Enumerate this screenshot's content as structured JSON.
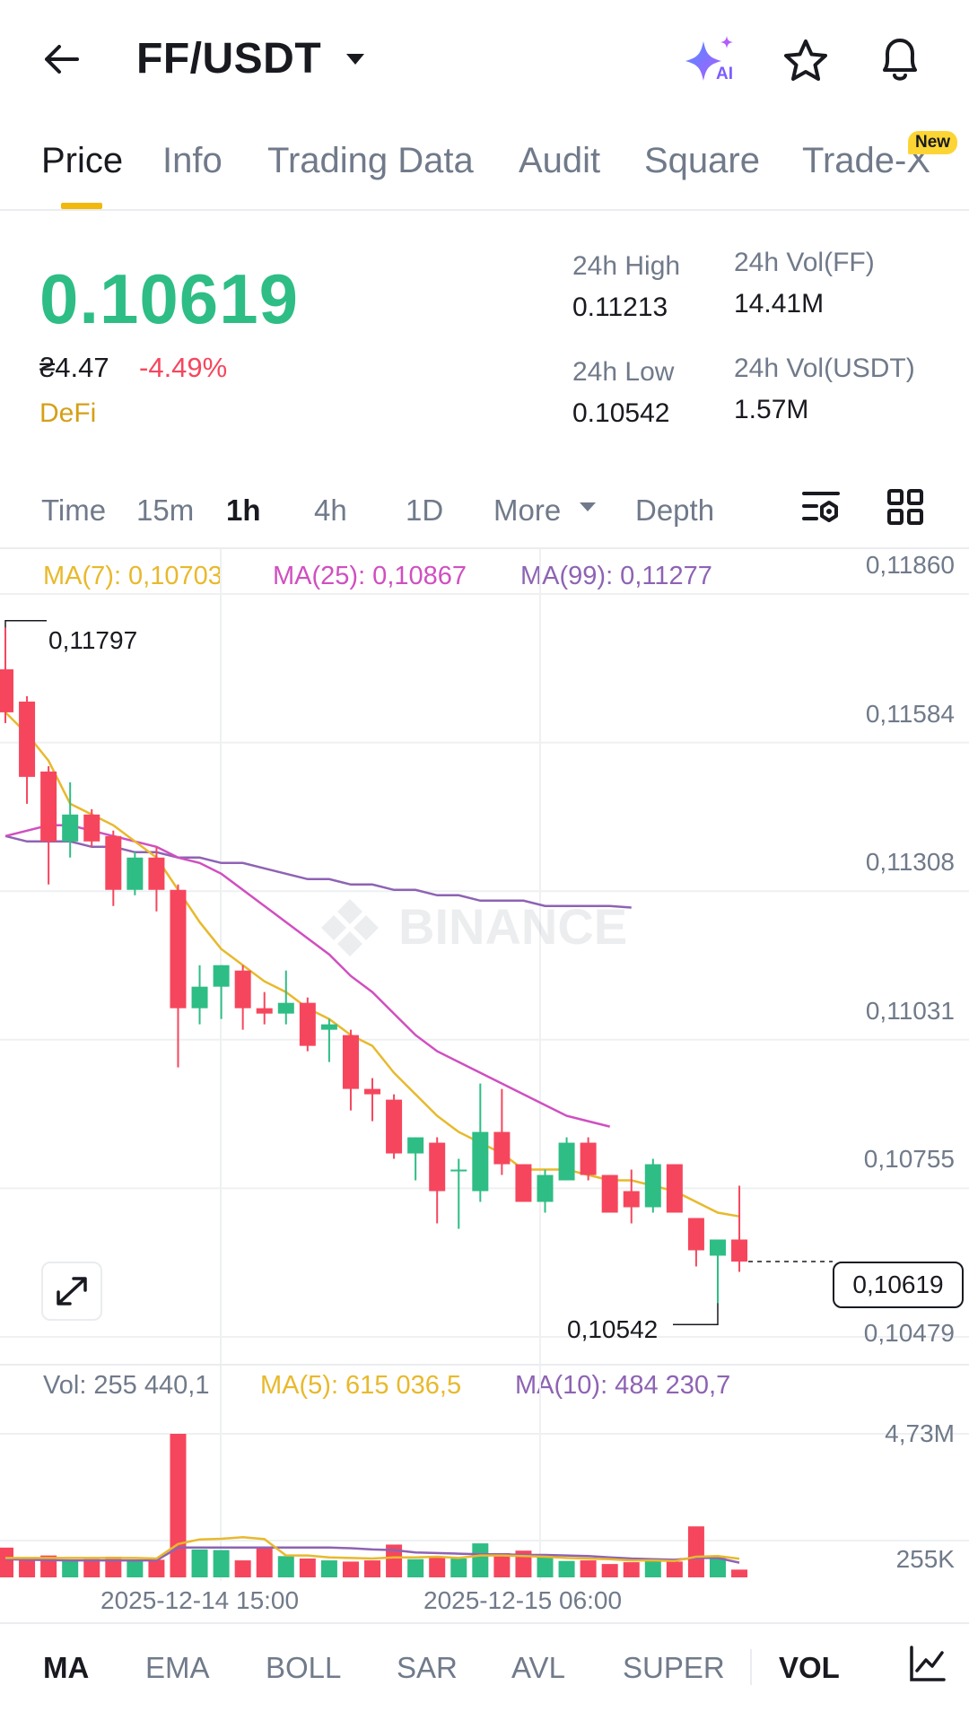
{
  "header": {
    "title": "FF/USDT",
    "ai_label": "AI"
  },
  "tabs": [
    {
      "label": "Price",
      "active": true
    },
    {
      "label": "Info"
    },
    {
      "label": "Trading Data"
    },
    {
      "label": "Audit"
    },
    {
      "label": "Square"
    },
    {
      "label": "Trade-X",
      "badge": "New"
    }
  ],
  "ticker": {
    "last_price": "0.10619",
    "fiat": "₴4.47",
    "change_pct": "-4.49%",
    "tag": "DeFi",
    "high_label": "24h High",
    "high_value": "0.11213",
    "low_label": "24h Low",
    "low_value": "0.10542",
    "vol_base_label": "24h Vol(FF)",
    "vol_base_value": "14.41M",
    "vol_quote_label": "24h Vol(USDT)",
    "vol_quote_value": "1.57M"
  },
  "timeframes": {
    "items": [
      "Time",
      "15m",
      "1h",
      "4h",
      "1D"
    ],
    "active": "1h",
    "more": "More",
    "depth": "Depth"
  },
  "ma_legend": {
    "ma7": "MA(7): 0,10703",
    "ma25": "MA(25): 0,10867",
    "ma99": "MA(99): 0,11277"
  },
  "colors": {
    "up": "#2ebd85",
    "down": "#f6465d",
    "ma7": "#e8b92c",
    "ma25": "#d04fc0",
    "ma99": "#8e63b3",
    "accent": "#f0b90b"
  },
  "price_axis": [
    "0,11860",
    "0,11584",
    "0,11308",
    "0,11031",
    "0,10755",
    "0,10479"
  ],
  "annotations": {
    "high_marker": "0,11797",
    "low_marker": "0,10542",
    "last_price_tag": "0,10619"
  },
  "watermark": "BINANCE",
  "volume_legend": {
    "vol": "Vol: 255 440,1",
    "ma5": "MA(5): 615 036,5",
    "ma10": "MA(10): 484 230,7"
  },
  "volume_axis": [
    "4,73M",
    "255K"
  ],
  "time_axis": [
    "2025-12-14 15:00",
    "2025-12-15 06:00"
  ],
  "indicators": {
    "items": [
      "MA",
      "EMA",
      "BOLL",
      "SAR",
      "AVL",
      "SUPER"
    ],
    "active_main": "MA",
    "vol": "VOL"
  },
  "chart_data": {
    "type": "candlestick",
    "y_range": [
      0.10479,
      0.1186
    ],
    "candles": [
      {
        "o": 0.1172,
        "h": 0.11797,
        "l": 0.1162,
        "c": 0.1164
      },
      {
        "o": 0.1166,
        "h": 0.1167,
        "l": 0.1147,
        "c": 0.1152
      },
      {
        "o": 0.1153,
        "h": 0.1154,
        "l": 0.1132,
        "c": 0.114
      },
      {
        "o": 0.114,
        "h": 0.1151,
        "l": 0.1137,
        "c": 0.1145
      },
      {
        "o": 0.1145,
        "h": 0.1146,
        "l": 0.1139,
        "c": 0.114
      },
      {
        "o": 0.1141,
        "h": 0.1142,
        "l": 0.1128,
        "c": 0.1131
      },
      {
        "o": 0.1131,
        "h": 0.1138,
        "l": 0.113,
        "c": 0.1137
      },
      {
        "o": 0.1137,
        "h": 0.1139,
        "l": 0.1127,
        "c": 0.1131
      },
      {
        "o": 0.1131,
        "h": 0.1132,
        "l": 0.1098,
        "c": 0.1109
      },
      {
        "o": 0.1109,
        "h": 0.1117,
        "l": 0.1106,
        "c": 0.1113
      },
      {
        "o": 0.1113,
        "h": 0.1117,
        "l": 0.1107,
        "c": 0.1117
      },
      {
        "o": 0.1116,
        "h": 0.1117,
        "l": 0.1105,
        "c": 0.1109
      },
      {
        "o": 0.1109,
        "h": 0.1112,
        "l": 0.1106,
        "c": 0.1108
      },
      {
        "o": 0.1108,
        "h": 0.1116,
        "l": 0.1106,
        "c": 0.111
      },
      {
        "o": 0.111,
        "h": 0.1111,
        "l": 0.1101,
        "c": 0.1102
      },
      {
        "o": 0.1105,
        "h": 0.1107,
        "l": 0.1099,
        "c": 0.1106
      },
      {
        "o": 0.1104,
        "h": 0.1105,
        "l": 0.109,
        "c": 0.1094
      },
      {
        "o": 0.1094,
        "h": 0.1096,
        "l": 0.1088,
        "c": 0.1093
      },
      {
        "o": 0.1092,
        "h": 0.1093,
        "l": 0.1081,
        "c": 0.1082
      },
      {
        "o": 0.1082,
        "h": 0.1085,
        "l": 0.1077,
        "c": 0.1085
      },
      {
        "o": 0.1084,
        "h": 0.1085,
        "l": 0.1069,
        "c": 0.1075
      },
      {
        "o": 0.1079,
        "h": 0.1081,
        "l": 0.1068,
        "c": 0.1079
      },
      {
        "o": 0.1075,
        "h": 0.1095,
        "l": 0.1073,
        "c": 0.1086
      },
      {
        "o": 0.1086,
        "h": 0.1094,
        "l": 0.1078,
        "c": 0.108
      },
      {
        "o": 0.108,
        "h": 0.108,
        "l": 0.1073,
        "c": 0.1073
      },
      {
        "o": 0.1073,
        "h": 0.1079,
        "l": 0.1071,
        "c": 0.1078
      },
      {
        "o": 0.1077,
        "h": 0.1085,
        "l": 0.1077,
        "c": 0.1084
      },
      {
        "o": 0.1084,
        "h": 0.1085,
        "l": 0.1077,
        "c": 0.1078
      },
      {
        "o": 0.1078,
        "h": 0.1078,
        "l": 0.1071,
        "c": 0.1071
      },
      {
        "o": 0.1075,
        "h": 0.1079,
        "l": 0.1069,
        "c": 0.1072
      },
      {
        "o": 0.1072,
        "h": 0.1081,
        "l": 0.1071,
        "c": 0.108
      },
      {
        "o": 0.108,
        "h": 0.108,
        "l": 0.1071,
        "c": 0.1071
      },
      {
        "o": 0.107,
        "h": 0.107,
        "l": 0.1061,
        "c": 0.1064
      },
      {
        "o": 0.1063,
        "h": 0.1066,
        "l": 0.10542,
        "c": 0.1066
      },
      {
        "o": 0.1066,
        "h": 0.1076,
        "l": 0.106,
        "c": 0.10619
      }
    ],
    "ma7": [
      0.1164,
      0.116,
      0.1155,
      0.1147,
      0.1145,
      0.1143,
      0.114,
      0.1137,
      0.1131,
      0.1125,
      0.112,
      0.1117,
      0.1114,
      0.1112,
      0.1109,
      0.1107,
      0.1104,
      0.1102,
      0.1097,
      0.1093,
      0.1089,
      0.1086,
      0.1084,
      0.1082,
      0.1079,
      0.1079,
      0.1079,
      0.1078,
      0.1077,
      0.1077,
      0.1076,
      0.1075,
      0.1073,
      0.1071,
      0.10703
    ],
    "ma25": [
      0.1141,
      0.1142,
      0.1143,
      0.1143,
      0.1142,
      0.1141,
      0.114,
      0.1139,
      0.1137,
      0.1136,
      0.1134,
      0.1131,
      0.1128,
      0.1125,
      0.1122,
      0.1119,
      0.1115,
      0.1112,
      0.1108,
      0.1104,
      0.1101,
      0.1099,
      0.1097,
      0.1095,
      0.1093,
      0.1091,
      0.1089,
      0.1088,
      0.1087,
      null,
      null,
      null,
      null,
      null,
      null
    ],
    "ma99": [
      0.1141,
      0.114,
      0.114,
      0.114,
      0.1139,
      0.1139,
      0.1138,
      0.1138,
      0.1137,
      0.1137,
      0.1136,
      0.1136,
      0.1135,
      0.1134,
      0.1133,
      0.1133,
      0.1132,
      0.1132,
      0.1131,
      0.1131,
      0.113,
      0.113,
      0.1129,
      0.1129,
      0.1129,
      0.1128,
      0.1128,
      0.1128,
      0.1128,
      0.11277,
      null,
      null,
      null,
      null,
      null
    ],
    "volume_range": [
      0,
      4730000
    ],
    "volumes": [
      980000,
      620000,
      720000,
      560000,
      600000,
      680000,
      560000,
      580000,
      4730000,
      920000,
      900000,
      560000,
      980000,
      700000,
      620000,
      560000,
      520000,
      560000,
      1080000,
      600000,
      680000,
      620000,
      1120000,
      800000,
      880000,
      760000,
      540000,
      560000,
      440000,
      500000,
      560000,
      520000,
      1680000,
      700000,
      255440
    ],
    "vol_ma5": [
      640000,
      640000,
      640000,
      640000,
      640000,
      640000,
      640000,
      620000,
      1100000,
      1250000,
      1270000,
      1320000,
      1260000,
      720000,
      720000,
      660000,
      640000,
      620000,
      660000,
      660000,
      680000,
      640000,
      720000,
      720000,
      700000,
      680000,
      640000,
      620000,
      600000,
      560000,
      560000,
      540000,
      680000,
      700000,
      615036
    ],
    "vol_ma10": [
      600000,
      580000,
      570000,
      560000,
      560000,
      560000,
      560000,
      560000,
      980000,
      980000,
      980000,
      980000,
      980000,
      980000,
      980000,
      980000,
      960000,
      920000,
      900000,
      820000,
      800000,
      780000,
      760000,
      760000,
      740000,
      740000,
      720000,
      700000,
      660000,
      620000,
      600000,
      580000,
      640000,
      640000,
      484231
    ]
  }
}
